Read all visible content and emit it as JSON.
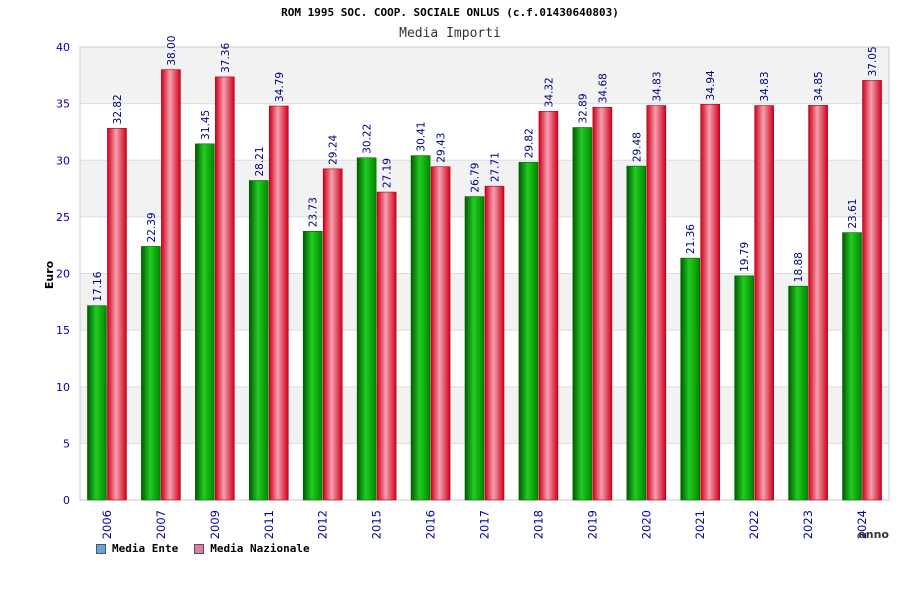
{
  "chart_data": {
    "type": "bar",
    "title": "ROM 1995 SOC. COOP. SOCIALE ONLUS (c.f.01430640803)",
    "subtitle": "Media Importi",
    "xlabel": "anno",
    "ylabel": "Euro",
    "ylim": [
      0,
      40
    ],
    "yticks": [
      0,
      5,
      10,
      15,
      20,
      25,
      30,
      35,
      40
    ],
    "grid": true,
    "legend_position": "bottom-left",
    "categories": [
      "2006",
      "2007",
      "2009",
      "2011",
      "2012",
      "2015",
      "2016",
      "2017",
      "2018",
      "2019",
      "2020",
      "2021",
      "2022",
      "2023",
      "2024"
    ],
    "series": [
      {
        "name": "Media Ente",
        "color": "#00aa00",
        "legend_color": "#6aa0e8",
        "values": [
          17.16,
          22.39,
          31.45,
          28.21,
          23.73,
          30.22,
          30.41,
          26.79,
          29.82,
          32.89,
          29.48,
          21.36,
          19.79,
          18.88,
          23.61
        ],
        "labels": [
          "17.16",
          "22.39",
          "31.45",
          "28.21",
          "23.73",
          "30.22",
          "30.41",
          "26.79",
          "29.82",
          "32.89",
          "29.48",
          "21.36",
          "19.79",
          "18.88",
          "23.61"
        ]
      },
      {
        "name": "Media Nazionale",
        "color": "#e8102a",
        "legend_color": "#e07aa8",
        "values": [
          32.82,
          38.0,
          37.36,
          34.79,
          29.24,
          27.19,
          29.43,
          27.71,
          34.32,
          34.68,
          34.83,
          34.94,
          34.83,
          34.85,
          37.05
        ],
        "labels": [
          "32.82",
          "38.00",
          "37.36",
          "34.79",
          "29.24",
          "27.19",
          "29.43",
          "27.71",
          "34.32",
          "34.68",
          "34.83",
          "34.94",
          "34.83",
          "34.85",
          "37.05"
        ]
      }
    ]
  }
}
